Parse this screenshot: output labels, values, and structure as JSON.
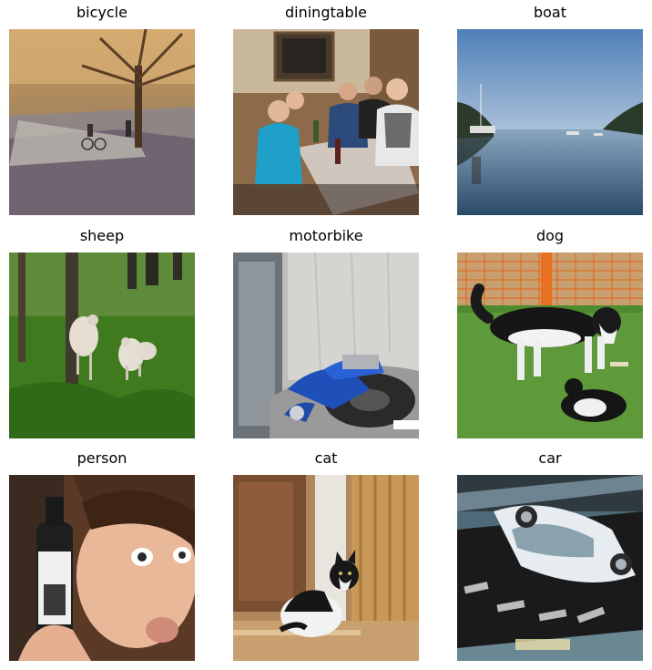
{
  "figure": {
    "images": [
      {
        "label": "bicycle"
      },
      {
        "label": "diningtable"
      },
      {
        "label": "boat"
      },
      {
        "label": "sheep"
      },
      {
        "label": "motorbike"
      },
      {
        "label": "dog"
      },
      {
        "label": "person"
      },
      {
        "label": "cat"
      },
      {
        "label": "car"
      }
    ]
  }
}
